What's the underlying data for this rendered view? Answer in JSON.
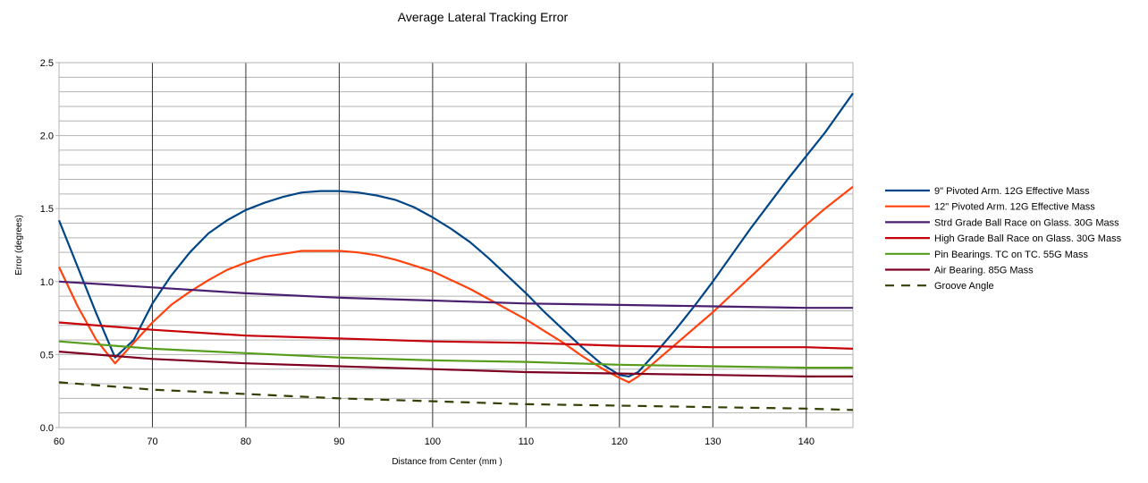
{
  "chart_data": {
    "type": "line",
    "title": "Average Lateral Tracking Error",
    "xlabel": "Distance from Center (mm )",
    "ylabel": "Error (degrees)",
    "xlim": [
      60,
      145
    ],
    "ylim": [
      0,
      2.5
    ],
    "x_ticks": [
      60,
      70,
      80,
      90,
      100,
      110,
      120,
      130,
      140
    ],
    "y_ticks": [
      "0.0",
      "0.5",
      "1.0",
      "1.5",
      "2.0",
      "2.5"
    ],
    "grid": true,
    "legend_position": "right",
    "series": [
      {
        "name": "9\" Pivoted Arm. 12G Effective Mass",
        "color": "#004586",
        "dash": "solid",
        "x": [
          60,
          62,
          64,
          66,
          68,
          70,
          72,
          74,
          76,
          78,
          80,
          82,
          84,
          86,
          88,
          90,
          92,
          94,
          96,
          98,
          100,
          102,
          104,
          106,
          108,
          110,
          112,
          114,
          116,
          118,
          120,
          121,
          122,
          124,
          126,
          128,
          130,
          132,
          134,
          136,
          138,
          140,
          142,
          145
        ],
        "y": [
          1.42,
          1.1,
          0.78,
          0.48,
          0.6,
          0.85,
          1.04,
          1.2,
          1.33,
          1.42,
          1.49,
          1.54,
          1.58,
          1.61,
          1.62,
          1.62,
          1.61,
          1.59,
          1.56,
          1.51,
          1.44,
          1.36,
          1.27,
          1.16,
          1.04,
          0.92,
          0.79,
          0.67,
          0.55,
          0.44,
          0.36,
          0.35,
          0.38,
          0.52,
          0.67,
          0.83,
          1.0,
          1.18,
          1.36,
          1.53,
          1.7,
          1.86,
          2.02,
          2.29
        ]
      },
      {
        "name": "12\" Pivoted Arm. 12G Effective Mass",
        "color": "#ff420e",
        "dash": "solid",
        "x": [
          60,
          62,
          64,
          66,
          68,
          70,
          72,
          74,
          76,
          78,
          80,
          82,
          84,
          86,
          88,
          90,
          92,
          94,
          96,
          98,
          100,
          102,
          104,
          106,
          108,
          110,
          112,
          114,
          116,
          118,
          120,
          121,
          122,
          124,
          126,
          128,
          130,
          132,
          134,
          136,
          138,
          140,
          142,
          145
        ],
        "y": [
          1.1,
          0.83,
          0.6,
          0.44,
          0.58,
          0.72,
          0.84,
          0.93,
          1.01,
          1.08,
          1.13,
          1.17,
          1.19,
          1.21,
          1.21,
          1.21,
          1.2,
          1.18,
          1.15,
          1.11,
          1.07,
          1.01,
          0.95,
          0.88,
          0.81,
          0.74,
          0.66,
          0.58,
          0.49,
          0.41,
          0.34,
          0.31,
          0.35,
          0.46,
          0.57,
          0.68,
          0.79,
          0.91,
          1.03,
          1.15,
          1.27,
          1.39,
          1.5,
          1.65
        ]
      },
      {
        "name": "Strd Grade Ball Race on Glass. 30G Mass",
        "color": "#4b1f6f",
        "dash": "solid",
        "x": [
          60,
          70,
          80,
          90,
          100,
          110,
          120,
          130,
          140,
          145
        ],
        "y": [
          1.0,
          0.96,
          0.92,
          0.89,
          0.87,
          0.85,
          0.84,
          0.83,
          0.82,
          0.82
        ]
      },
      {
        "name": "High Grade Ball Race on Glass. 30G Mass",
        "color": "#c5000b",
        "dash": "solid",
        "x": [
          60,
          70,
          80,
          90,
          100,
          110,
          120,
          130,
          140,
          145
        ],
        "y": [
          0.72,
          0.67,
          0.63,
          0.61,
          0.59,
          0.58,
          0.56,
          0.55,
          0.55,
          0.54
        ]
      },
      {
        "name": "Pin Bearings. TC on TC. 55G Mass",
        "color": "#579d1c",
        "dash": "solid",
        "x": [
          60,
          70,
          80,
          90,
          100,
          110,
          120,
          130,
          140,
          145
        ],
        "y": [
          0.59,
          0.54,
          0.51,
          0.48,
          0.46,
          0.45,
          0.43,
          0.42,
          0.41,
          0.41
        ]
      },
      {
        "name": "Air Bearing. 85G Mass",
        "color": "#7e0021",
        "dash": "solid",
        "x": [
          60,
          70,
          80,
          90,
          100,
          110,
          120,
          130,
          140,
          145
        ],
        "y": [
          0.52,
          0.47,
          0.44,
          0.42,
          0.4,
          0.38,
          0.37,
          0.36,
          0.35,
          0.35
        ]
      },
      {
        "name": "Groove Angle",
        "color": "#314004",
        "dash": "dashed",
        "x": [
          60,
          70,
          80,
          90,
          100,
          110,
          120,
          130,
          140,
          145
        ],
        "y": [
          0.31,
          0.26,
          0.23,
          0.2,
          0.18,
          0.16,
          0.15,
          0.14,
          0.13,
          0.12
        ]
      }
    ]
  }
}
